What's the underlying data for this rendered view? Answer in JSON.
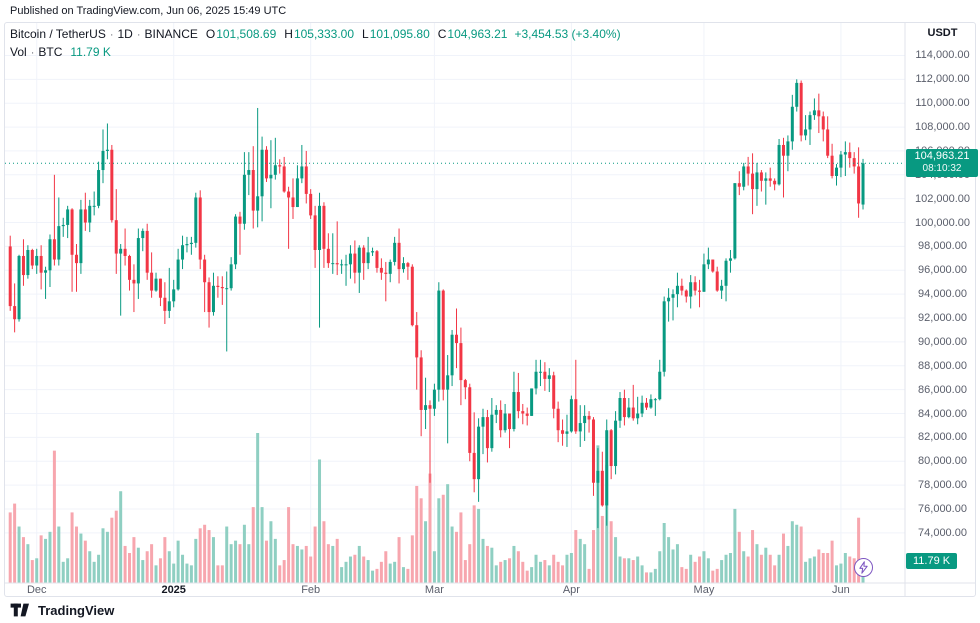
{
  "published_bar": {
    "text": "Published on TradingView.com, Jun 06, 2025 15:49 UTC"
  },
  "legend": {
    "symbol": "Bitcoin / TetherUS",
    "separator": "·",
    "interval": "1D",
    "exchange": "BINANCE",
    "open_label": "O",
    "open": "101,508.69",
    "high_label": "H",
    "high": "105,333.00",
    "low_label": "L",
    "low": "101,095.80",
    "close_label": "C",
    "close": "104,963.21",
    "change": "+3,454.53 (+3.40%)",
    "volume_label": "Vol",
    "volume_symbol": "BTC",
    "volume_value": "11.79 K"
  },
  "price_axis": {
    "unit": "USDT",
    "ticks": [
      "114,000.00",
      "112,000.00",
      "110,000.00",
      "108,000.00",
      "106,000.00",
      "104,000.00",
      "102,000.00",
      "100,000.00",
      "98,000.00",
      "96,000.00",
      "94,000.00",
      "92,000.00",
      "90,000.00",
      "88,000.00",
      "86,000.00",
      "84,000.00",
      "82,000.00",
      "80,000.00",
      "78,000.00",
      "76,000.00",
      "74,000.00"
    ],
    "last_price_badge": {
      "price": "104,963.21",
      "countdown": "08:10:32"
    },
    "volume_badge": "11.79 K"
  },
  "time_axis": {
    "labels": [
      {
        "text": "Dec",
        "index": 6
      },
      {
        "text": "2025",
        "index": 37,
        "year": true
      },
      {
        "text": "Feb",
        "index": 68
      },
      {
        "text": "Mar",
        "index": 96
      },
      {
        "text": "Apr",
        "index": 127
      },
      {
        "text": "May",
        "index": 157
      },
      {
        "text": "Jun",
        "index": 188
      }
    ]
  },
  "footer": {
    "brand": "TradingView"
  },
  "colors": {
    "up": "#089981",
    "down": "#f23645",
    "vol_up": "#8fcfc2",
    "vol_down": "#f7a6ae",
    "grid": "#f0f3fa",
    "frame": "#e0e3eb",
    "badge": "#089981",
    "marker": "#7e57c2",
    "text_primary": "#131722",
    "text_secondary": "#5a5e6b"
  },
  "chart_data": {
    "type": "candlestick",
    "title": "Bitcoin / TetherUS 1D BINANCE",
    "symbol": "BTC/USDT",
    "exchange": "BINANCE",
    "interval": "1D",
    "price_unit": "USDT",
    "volume_unit": "K BTC",
    "start_date": "2024-11-25",
    "end_date": "2025-06-06",
    "y_range": [
      69800,
      116300
    ],
    "y_tick_step": 2000,
    "grid": true,
    "columns": [
      "open",
      "high",
      "low",
      "close",
      "volume_k"
    ],
    "candles": [
      [
        98000,
        98900,
        92600,
        93000,
        40
      ],
      [
        93000,
        94900,
        90800,
        91900,
        45
      ],
      [
        91900,
        97300,
        91700,
        97200,
        32
      ],
      [
        97200,
        98600,
        94700,
        95600,
        26
      ],
      [
        95600,
        98100,
        95300,
        97700,
        22
      ],
      [
        97700,
        97800,
        96100,
        96400,
        13
      ],
      [
        96400,
        97800,
        95700,
        97200,
        14
      ],
      [
        97200,
        98100,
        94400,
        95800,
        27
      ],
      [
        95800,
        96300,
        93600,
        96000,
        25
      ],
      [
        96000,
        99000,
        94600,
        98600,
        29
      ],
      [
        98600,
        104000,
        96400,
        96900,
        75
      ],
      [
        96900,
        102100,
        96400,
        99700,
        32
      ],
      [
        99700,
        100400,
        98800,
        99800,
        12
      ],
      [
        99800,
        101400,
        98700,
        101100,
        14
      ],
      [
        101100,
        101200,
        94200,
        97300,
        40
      ],
      [
        97300,
        98200,
        94200,
        96600,
        32
      ],
      [
        96600,
        101900,
        95700,
        101100,
        28
      ],
      [
        101100,
        102500,
        99300,
        100000,
        24
      ],
      [
        100000,
        101900,
        99200,
        101400,
        18
      ],
      [
        101400,
        102600,
        100600,
        101400,
        12
      ],
      [
        101400,
        105100,
        101200,
        104400,
        16
      ],
      [
        104400,
        107800,
        103300,
        106000,
        31
      ],
      [
        106000,
        108300,
        105300,
        106100,
        29
      ],
      [
        106100,
        106500,
        100000,
        100200,
        37
      ],
      [
        100200,
        102800,
        95700,
        97400,
        41
      ],
      [
        97400,
        98200,
        92200,
        97800,
        52
      ],
      [
        97800,
        99500,
        96400,
        97200,
        21
      ],
      [
        97200,
        97300,
        94300,
        95200,
        17
      ],
      [
        95200,
        96500,
        92500,
        94900,
        26
      ],
      [
        94900,
        99500,
        93600,
        98700,
        20
      ],
      [
        98700,
        99500,
        97600,
        99300,
        13
      ],
      [
        99300,
        99900,
        95200,
        95800,
        18
      ],
      [
        95800,
        97500,
        93700,
        94300,
        22
      ],
      [
        94300,
        95800,
        94200,
        95300,
        10
      ],
      [
        95300,
        95300,
        93000,
        93700,
        14
      ],
      [
        93700,
        95000,
        91500,
        92600,
        26
      ],
      [
        92600,
        96200,
        92000,
        93400,
        18
      ],
      [
        93400,
        95200,
        92900,
        94400,
        11
      ],
      [
        94400,
        97800,
        94300,
        96900,
        24
      ],
      [
        96900,
        98900,
        96100,
        98100,
        16
      ],
      [
        98100,
        98800,
        97500,
        98200,
        11
      ],
      [
        98200,
        98800,
        97300,
        98300,
        10
      ],
      [
        98300,
        102500,
        97900,
        102100,
        25
      ],
      [
        102100,
        102700,
        96100,
        96900,
        31
      ],
      [
        96900,
        97300,
        92500,
        95000,
        33
      ],
      [
        95000,
        95400,
        91200,
        92500,
        30
      ],
      [
        92500,
        95800,
        92200,
        94700,
        26
      ],
      [
        94700,
        95500,
        93700,
        94600,
        10
      ],
      [
        94600,
        95500,
        93100,
        94500,
        10
      ],
      [
        94500,
        95900,
        89200,
        94500,
        32
      ],
      [
        94500,
        97100,
        94300,
        96500,
        22
      ],
      [
        96500,
        100700,
        96100,
        100500,
        24
      ],
      [
        100500,
        100900,
        97300,
        99900,
        22
      ],
      [
        99900,
        105900,
        99400,
        104000,
        33
      ],
      [
        104000,
        105900,
        102300,
        104400,
        22
      ],
      [
        104400,
        106400,
        99500,
        101000,
        43
      ],
      [
        101000,
        109600,
        99600,
        102200,
        85
      ],
      [
        102200,
        107200,
        100100,
        106100,
        43
      ],
      [
        106100,
        106400,
        103400,
        103700,
        24
      ],
      [
        103700,
        106900,
        101200,
        104000,
        35
      ],
      [
        104000,
        107100,
        103600,
        104800,
        25
      ],
      [
        104800,
        105300,
        104100,
        104700,
        10
      ],
      [
        104700,
        105500,
        102500,
        102600,
        13
      ],
      [
        102600,
        103000,
        97800,
        102100,
        43
      ],
      [
        102100,
        103700,
        100300,
        101300,
        22
      ],
      [
        101300,
        104800,
        101300,
        103700,
        21
      ],
      [
        103700,
        106500,
        103300,
        104700,
        19
      ],
      [
        104700,
        106000,
        101600,
        102400,
        21
      ],
      [
        102400,
        102800,
        100300,
        100600,
        15
      ],
      [
        100600,
        101400,
        96200,
        97700,
        32
      ],
      [
        97700,
        102500,
        91200,
        101400,
        70
      ],
      [
        101400,
        101700,
        96200,
        97800,
        35
      ],
      [
        97800,
        99100,
        96200,
        96600,
        22
      ],
      [
        96600,
        99100,
        95700,
        96600,
        21
      ],
      [
        96600,
        100100,
        95600,
        96500,
        25
      ],
      [
        96500,
        96900,
        95700,
        96500,
        9
      ],
      [
        96500,
        97300,
        94700,
        96500,
        12
      ],
      [
        96500,
        98100,
        95300,
        97400,
        15
      ],
      [
        97400,
        98500,
        94900,
        95800,
        16
      ],
      [
        95800,
        98100,
        94100,
        97900,
        21
      ],
      [
        97900,
        98100,
        95200,
        96600,
        15
      ],
      [
        96600,
        98800,
        96100,
        97500,
        13
      ],
      [
        97500,
        97900,
        97200,
        97600,
        7
      ],
      [
        97600,
        97700,
        95800,
        96200,
        8
      ],
      [
        96200,
        97000,
        95200,
        95800,
        12
      ],
      [
        95800,
        96700,
        93400,
        95700,
        18
      ],
      [
        95700,
        96900,
        95000,
        96700,
        11
      ],
      [
        96700,
        98800,
        96400,
        98300,
        12
      ],
      [
        98300,
        99500,
        94900,
        96100,
        26
      ],
      [
        96100,
        97100,
        95800,
        96600,
        9
      ],
      [
        96600,
        96700,
        95200,
        96300,
        8
      ],
      [
        96300,
        96500,
        91300,
        91400,
        27
      ],
      [
        91400,
        92500,
        86000,
        88700,
        55
      ],
      [
        88700,
        89300,
        82100,
        84300,
        48
      ],
      [
        84300,
        87000,
        82700,
        84700,
        35
      ],
      [
        84700,
        85100,
        78200,
        84400,
        62
      ],
      [
        84400,
        86500,
        83800,
        86000,
        18
      ],
      [
        86000,
        95000,
        85000,
        94300,
        48
      ],
      [
        94300,
        94400,
        85100,
        86000,
        50
      ],
      [
        86000,
        88900,
        81500,
        87200,
        56
      ],
      [
        87200,
        91000,
        86300,
        90600,
        32
      ],
      [
        90600,
        92800,
        87800,
        89900,
        29
      ],
      [
        89900,
        91200,
        84700,
        86800,
        40
      ],
      [
        86800,
        86900,
        85200,
        86200,
        13
      ],
      [
        86200,
        86500,
        80000,
        80700,
        22
      ],
      [
        80700,
        84100,
        77400,
        78500,
        44
      ],
      [
        78500,
        83600,
        76600,
        82900,
        42
      ],
      [
        82900,
        84400,
        80600,
        83700,
        25
      ],
      [
        83700,
        84300,
        79900,
        81100,
        21
      ],
      [
        81100,
        85300,
        80800,
        83900,
        20
      ],
      [
        83900,
        84700,
        83200,
        84300,
        10
      ],
      [
        84300,
        85100,
        82000,
        82600,
        12
      ],
      [
        82600,
        84800,
        82400,
        84000,
        13
      ],
      [
        84000,
        84000,
        81100,
        82700,
        14
      ],
      [
        82700,
        87500,
        82500,
        85800,
        21
      ],
      [
        85800,
        87400,
        83600,
        84200,
        18
      ],
      [
        84200,
        84800,
        83100,
        84000,
        12
      ],
      [
        84000,
        84500,
        83000,
        83800,
        7
      ],
      [
        83800,
        86100,
        83800,
        86100,
        9
      ],
      [
        86100,
        88500,
        85600,
        87500,
        16
      ],
      [
        87500,
        88500,
        86300,
        87500,
        12
      ],
      [
        87500,
        88300,
        85900,
        86900,
        13
      ],
      [
        86900,
        87800,
        85800,
        87200,
        10
      ],
      [
        87200,
        87500,
        83600,
        84400,
        16
      ],
      [
        84400,
        85000,
        81600,
        82600,
        12
      ],
      [
        82600,
        83500,
        81300,
        82300,
        10
      ],
      [
        82300,
        83900,
        81200,
        82500,
        16
      ],
      [
        82500,
        85500,
        82400,
        85200,
        17
      ],
      [
        85200,
        88500,
        82300,
        82500,
        30
      ],
      [
        82500,
        84700,
        81200,
        83200,
        25
      ],
      [
        83200,
        84700,
        81700,
        83800,
        22
      ],
      [
        83800,
        84200,
        82400,
        83500,
        8
      ],
      [
        83500,
        83700,
        77100,
        78200,
        30
      ],
      [
        78200,
        81100,
        74400,
        79200,
        78
      ],
      [
        79200,
        80800,
        76200,
        76300,
        38
      ],
      [
        76300,
        83500,
        74600,
        82600,
        67
      ],
      [
        82600,
        82700,
        78500,
        79600,
        35
      ],
      [
        79600,
        84200,
        78900,
        83400,
        26
      ],
      [
        83400,
        85800,
        82800,
        85300,
        15
      ],
      [
        85300,
        86000,
        83000,
        83700,
        14
      ],
      [
        83700,
        85300,
        83600,
        84500,
        14
      ],
      [
        84500,
        86400,
        83400,
        83600,
        13
      ],
      [
        83600,
        85400,
        83100,
        84000,
        15
      ],
      [
        84000,
        85500,
        83700,
        84900,
        10
      ],
      [
        84900,
        85300,
        84300,
        84500,
        6
      ],
      [
        84500,
        85600,
        84400,
        85200,
        6
      ],
      [
        85200,
        85300,
        83800,
        85200,
        8
      ],
      [
        85200,
        88500,
        85100,
        87500,
        18
      ],
      [
        87500,
        93800,
        87100,
        93400,
        34
      ],
      [
        93400,
        94500,
        91700,
        93700,
        26
      ],
      [
        93700,
        94400,
        91800,
        94000,
        19
      ],
      [
        94000,
        95800,
        92900,
        94700,
        22
      ],
      [
        94700,
        95300,
        93900,
        94300,
        9
      ],
      [
        94300,
        94400,
        93300,
        93800,
        8
      ],
      [
        93800,
        95600,
        92800,
        95000,
        16
      ],
      [
        95000,
        95500,
        93900,
        94300,
        12
      ],
      [
        94300,
        95200,
        92900,
        94200,
        15
      ],
      [
        94200,
        97400,
        94200,
        96500,
        18
      ],
      [
        96500,
        97900,
        96100,
        96900,
        14
      ],
      [
        96900,
        96900,
        95800,
        95900,
        7
      ],
      [
        95900,
        96300,
        94200,
        94300,
        8
      ],
      [
        94300,
        95200,
        93600,
        94700,
        13
      ],
      [
        94700,
        97000,
        93400,
        96800,
        16
      ],
      [
        96800,
        97700,
        95800,
        97000,
        17
      ],
      [
        97000,
        103300,
        96900,
        103300,
        42
      ],
      [
        103300,
        104300,
        102300,
        103000,
        29
      ],
      [
        103000,
        105000,
        102700,
        104700,
        18
      ],
      [
        104700,
        105500,
        103100,
        104100,
        15
      ],
      [
        104100,
        105800,
        100700,
        102800,
        30
      ],
      [
        102800,
        105000,
        101400,
        104200,
        22
      ],
      [
        104200,
        104400,
        102600,
        103500,
        16
      ],
      [
        103500,
        104200,
        101500,
        103700,
        20
      ],
      [
        103700,
        104600,
        103000,
        103500,
        16
      ],
      [
        103500,
        103700,
        102700,
        103200,
        10
      ],
      [
        103200,
        107000,
        103100,
        106500,
        16
      ],
      [
        106500,
        107100,
        102100,
        105600,
        28
      ],
      [
        105600,
        107300,
        104300,
        106800,
        21
      ],
      [
        106800,
        110700,
        106100,
        109700,
        35
      ],
      [
        109700,
        112000,
        109300,
        111700,
        33
      ],
      [
        111700,
        111900,
        106800,
        107300,
        32
      ],
      [
        107300,
        109000,
        106900,
        107800,
        12
      ],
      [
        107800,
        109300,
        106500,
        109000,
        14
      ],
      [
        109000,
        110400,
        108600,
        109400,
        15
      ],
      [
        109400,
        110800,
        107500,
        108900,
        19
      ],
      [
        108900,
        109300,
        106800,
        107800,
        17
      ],
      [
        107800,
        108900,
        105400,
        105600,
        17
      ],
      [
        105600,
        106600,
        103700,
        103900,
        24
      ],
      [
        103900,
        104900,
        103100,
        104600,
        10
      ],
      [
        104600,
        106000,
        103800,
        105700,
        11
      ],
      [
        105700,
        106800,
        103900,
        105900,
        17
      ],
      [
        105900,
        106700,
        104600,
        105400,
        15
      ],
      [
        105400,
        105900,
        104100,
        104700,
        14
      ],
      [
        104700,
        106300,
        100400,
        101600,
        37
      ],
      [
        101508.69,
        105333,
        101095.8,
        104963.21,
        11.79
      ]
    ]
  }
}
